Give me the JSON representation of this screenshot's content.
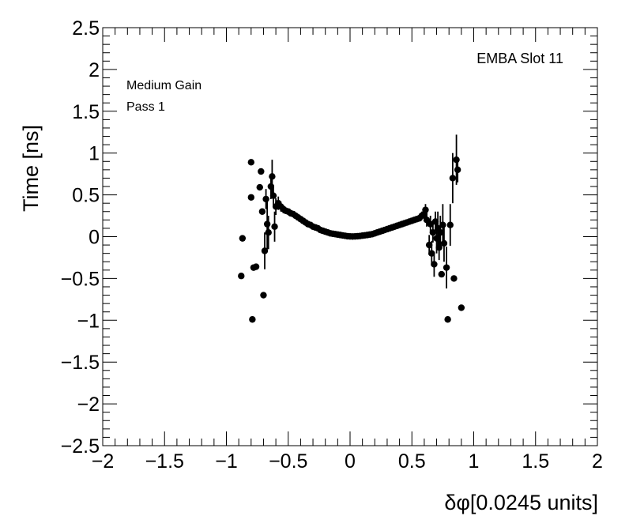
{
  "chart_data": {
    "type": "scatter",
    "title": "",
    "xlabel": "δφ[0.0245 units]",
    "ylabel": "Time [ns]",
    "xlim": [
      -2,
      2
    ],
    "ylim": [
      -2.5,
      2.5
    ],
    "x_ticks": [
      "−2",
      "−1.5",
      "−1",
      "−0.5",
      "0",
      "0.5",
      "1",
      "1.5",
      "2"
    ],
    "y_ticks": [
      "2.5",
      "2",
      "1.5",
      "1",
      "0.5",
      "0",
      "−0.5",
      "−1",
      "−1.5",
      "−2",
      "−2.5"
    ],
    "annotations": {
      "top_right": "EMBA Slot 11",
      "line1": "Medium Gain",
      "line2": "Pass 1"
    },
    "marker_color": "#000000",
    "grid": false,
    "series": [
      {
        "points": [
          {
            "x": -0.88,
            "y": -0.47,
            "err": 0
          },
          {
            "x": -0.87,
            "y": -0.02,
            "err": 0
          },
          {
            "x": -0.8,
            "y": 0.89,
            "err": 0
          },
          {
            "x": -0.8,
            "y": 0.47,
            "err": 0
          },
          {
            "x": -0.79,
            "y": -0.99,
            "err": 0
          },
          {
            "x": -0.78,
            "y": -0.37,
            "err": 0
          },
          {
            "x": -0.76,
            "y": -0.36,
            "err": 0
          },
          {
            "x": -0.73,
            "y": 0.59,
            "err": 0
          },
          {
            "x": -0.72,
            "y": 0.78,
            "err": 0
          },
          {
            "x": -0.71,
            "y": 0.3,
            "err": 0
          },
          {
            "x": -0.7,
            "y": -0.7,
            "err": 0
          },
          {
            "x": -0.69,
            "y": -0.17,
            "err": 0.22
          },
          {
            "x": -0.68,
            "y": 0.45,
            "err": 0.12
          },
          {
            "x": -0.67,
            "y": 0.15,
            "err": 0.3
          },
          {
            "x": -0.66,
            "y": 0.05,
            "err": 0.2
          },
          {
            "x": -0.64,
            "y": 0.6,
            "err": 0.15
          },
          {
            "x": -0.63,
            "y": 0.72,
            "err": 0.2
          },
          {
            "x": -0.62,
            "y": 0.49,
            "err": 0.12
          },
          {
            "x": -0.61,
            "y": 0.12,
            "err": 0.18
          },
          {
            "x": -0.6,
            "y": 0.36,
            "err": 0.1
          },
          {
            "x": -0.58,
            "y": 0.4,
            "err": 0.08
          },
          {
            "x": -0.56,
            "y": 0.36,
            "err": 0.06
          },
          {
            "x": -0.54,
            "y": 0.33,
            "err": 0.05
          },
          {
            "x": -0.52,
            "y": 0.31,
            "err": 0.04
          },
          {
            "x": -0.5,
            "y": 0.3,
            "err": 0.03
          },
          {
            "x": -0.48,
            "y": 0.28,
            "err": 0.02
          },
          {
            "x": -0.46,
            "y": 0.27,
            "err": 0.02
          },
          {
            "x": -0.44,
            "y": 0.25,
            "err": 0.01
          },
          {
            "x": -0.42,
            "y": 0.23,
            "err": 0.01
          },
          {
            "x": -0.4,
            "y": 0.21,
            "err": 0.01
          },
          {
            "x": -0.38,
            "y": 0.19,
            "err": 0.01
          },
          {
            "x": -0.36,
            "y": 0.17,
            "err": 0
          },
          {
            "x": -0.34,
            "y": 0.15,
            "err": 0
          },
          {
            "x": -0.32,
            "y": 0.14,
            "err": 0
          },
          {
            "x": -0.3,
            "y": 0.12,
            "err": 0
          },
          {
            "x": -0.28,
            "y": 0.11,
            "err": 0
          },
          {
            "x": -0.26,
            "y": 0.1,
            "err": 0
          },
          {
            "x": -0.24,
            "y": 0.08,
            "err": 0
          },
          {
            "x": -0.22,
            "y": 0.07,
            "err": 0
          },
          {
            "x": -0.2,
            "y": 0.06,
            "err": 0
          },
          {
            "x": -0.18,
            "y": 0.05,
            "err": 0
          },
          {
            "x": -0.16,
            "y": 0.04,
            "err": 0
          },
          {
            "x": -0.14,
            "y": 0.035,
            "err": 0
          },
          {
            "x": -0.12,
            "y": 0.03,
            "err": 0
          },
          {
            "x": -0.1,
            "y": 0.025,
            "err": 0
          },
          {
            "x": -0.08,
            "y": 0.02,
            "err": 0
          },
          {
            "x": -0.06,
            "y": 0.015,
            "err": 0
          },
          {
            "x": -0.04,
            "y": 0.01,
            "err": 0
          },
          {
            "x": -0.02,
            "y": 0.005,
            "err": 0
          },
          {
            "x": 0.0,
            "y": 0.003,
            "err": 0
          },
          {
            "x": 0.02,
            "y": 0.002,
            "err": 0
          },
          {
            "x": 0.04,
            "y": 0.003,
            "err": 0
          },
          {
            "x": 0.06,
            "y": 0.005,
            "err": 0
          },
          {
            "x": 0.08,
            "y": 0.008,
            "err": 0
          },
          {
            "x": 0.1,
            "y": 0.012,
            "err": 0
          },
          {
            "x": 0.12,
            "y": 0.016,
            "err": 0
          },
          {
            "x": 0.14,
            "y": 0.02,
            "err": 0
          },
          {
            "x": 0.16,
            "y": 0.025,
            "err": 0
          },
          {
            "x": 0.18,
            "y": 0.03,
            "err": 0
          },
          {
            "x": 0.2,
            "y": 0.04,
            "err": 0
          },
          {
            "x": 0.22,
            "y": 0.05,
            "err": 0
          },
          {
            "x": 0.24,
            "y": 0.06,
            "err": 0
          },
          {
            "x": 0.26,
            "y": 0.07,
            "err": 0
          },
          {
            "x": 0.28,
            "y": 0.08,
            "err": 0
          },
          {
            "x": 0.3,
            "y": 0.09,
            "err": 0
          },
          {
            "x": 0.32,
            "y": 0.1,
            "err": 0
          },
          {
            "x": 0.34,
            "y": 0.11,
            "err": 0
          },
          {
            "x": 0.36,
            "y": 0.12,
            "err": 0
          },
          {
            "x": 0.38,
            "y": 0.13,
            "err": 0
          },
          {
            "x": 0.4,
            "y": 0.14,
            "err": 0.01
          },
          {
            "x": 0.42,
            "y": 0.15,
            "err": 0.01
          },
          {
            "x": 0.44,
            "y": 0.16,
            "err": 0.01
          },
          {
            "x": 0.46,
            "y": 0.17,
            "err": 0.01
          },
          {
            "x": 0.48,
            "y": 0.18,
            "err": 0.02
          },
          {
            "x": 0.5,
            "y": 0.19,
            "err": 0.02
          },
          {
            "x": 0.52,
            "y": 0.2,
            "err": 0.02
          },
          {
            "x": 0.54,
            "y": 0.21,
            "err": 0.03
          },
          {
            "x": 0.56,
            "y": 0.22,
            "err": 0.04
          },
          {
            "x": 0.58,
            "y": 0.25,
            "err": 0.05
          },
          {
            "x": 0.6,
            "y": 0.27,
            "err": 0.06
          },
          {
            "x": 0.61,
            "y": 0.32,
            "err": 0.07
          },
          {
            "x": 0.62,
            "y": 0.2,
            "err": 0.08
          },
          {
            "x": 0.64,
            "y": -0.1,
            "err": 0.12
          },
          {
            "x": 0.65,
            "y": 0.15,
            "err": 0.1
          },
          {
            "x": 0.66,
            "y": -0.2,
            "err": 0.15
          },
          {
            "x": 0.67,
            "y": 0.05,
            "err": 0.12
          },
          {
            "x": 0.68,
            "y": -0.33,
            "err": 0.15
          },
          {
            "x": 0.69,
            "y": 0.18,
            "err": 0.12
          },
          {
            "x": 0.7,
            "y": -0.02,
            "err": 0.18
          },
          {
            "x": 0.71,
            "y": 0.1,
            "err": 0.2
          },
          {
            "x": 0.72,
            "y": -0.13,
            "err": 0.15
          },
          {
            "x": 0.73,
            "y": 0.05,
            "err": 0.2
          },
          {
            "x": 0.74,
            "y": -0.45,
            "err": 0
          },
          {
            "x": 0.75,
            "y": 0.14,
            "err": 0.25
          },
          {
            "x": 0.76,
            "y": -0.08,
            "err": 0.22
          },
          {
            "x": 0.78,
            "y": -0.37,
            "err": 0.25
          },
          {
            "x": 0.79,
            "y": -0.99,
            "err": 0
          },
          {
            "x": 0.81,
            "y": 0.14,
            "err": 0.25
          },
          {
            "x": 0.83,
            "y": 0.7,
            "err": 0.3
          },
          {
            "x": 0.84,
            "y": -0.5,
            "err": 0
          },
          {
            "x": 0.86,
            "y": 0.92,
            "err": 0.3
          },
          {
            "x": 0.87,
            "y": 0.8,
            "err": 0.15
          },
          {
            "x": 0.9,
            "y": -0.85,
            "err": 0
          }
        ]
      }
    ]
  }
}
